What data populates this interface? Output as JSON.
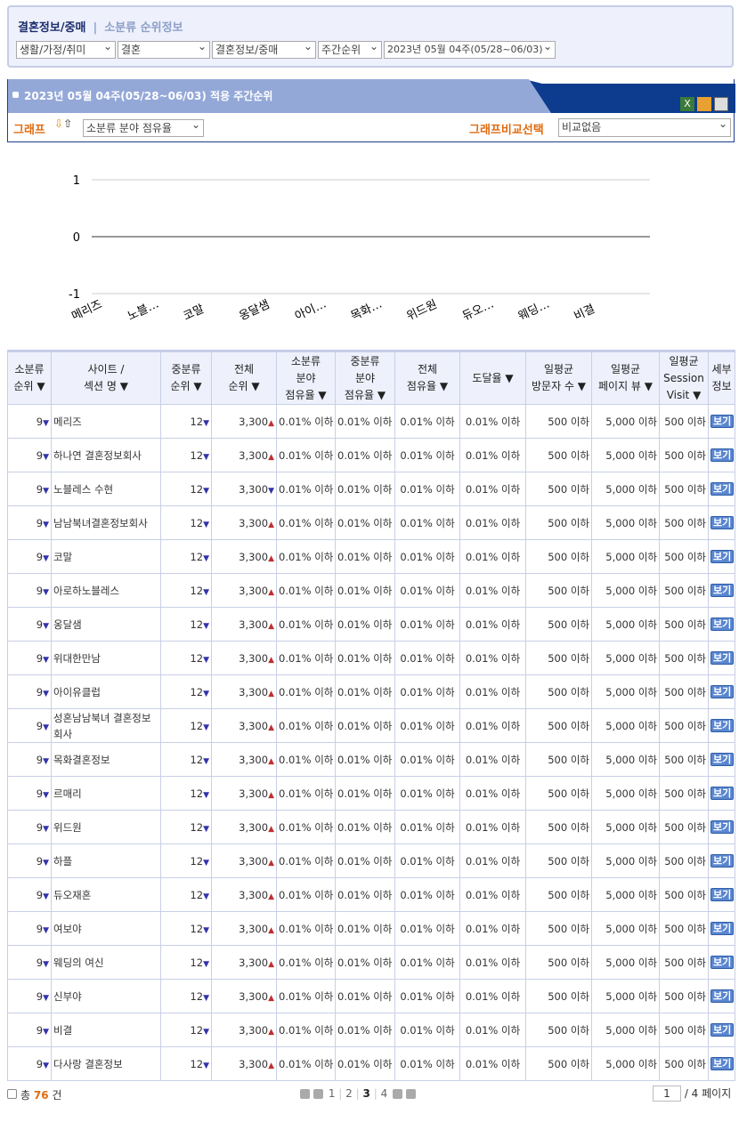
{
  "breadcrumb": {
    "category": "결혼정보/중매",
    "section": "소분류 순위정보",
    "separator": "|"
  },
  "filters": [
    "생활/가정/취미",
    "결혼",
    "결혼정보/중매",
    "주간순위",
    "2023년 05월 04주(05/28~06/03)"
  ],
  "panel": {
    "title": "2023년 05월 04주(05/28~06/03) 적용 주간순위",
    "graph_label": "그래프",
    "graph_select": "소분류 분야 점유율",
    "compare_label": "그래프비교선택",
    "compare_select": "비교없음",
    "icons": [
      "excel-icon",
      "export-icon",
      "print-icon"
    ]
  },
  "chart_data": {
    "type": "line",
    "categories": [
      "메리즈",
      "노블…",
      "코말",
      "옹달샘",
      "아이…",
      "목화…",
      "위드원",
      "듀오…",
      "웨딩…",
      "비결"
    ],
    "values": [
      0,
      0,
      0,
      0,
      0,
      0,
      0,
      0,
      0,
      0
    ],
    "ylim": [
      -1,
      1
    ],
    "yticks": [
      "1",
      "0",
      "-1"
    ],
    "grid": true
  },
  "table": {
    "headers": [
      "소분류\n순위 ▼",
      "사이트 /\n섹션 명 ▼",
      "중분류\n순위 ▼",
      "전체\n순위 ▼",
      "소분류\n분야\n점유율 ▼",
      "중분류\n분야\n점유율 ▼",
      "전체\n점유율 ▼",
      "도달율 ▼",
      "일평균\n방문자 수 ▼",
      "일평균\n페이지 뷰 ▼",
      "일평균\nSession\nVisit ▼",
      "세부\n정보"
    ],
    "view_label": "보기",
    "rows": [
      {
        "rank": "9",
        "name": "메리즈",
        "mid": "12",
        "total": "3,300",
        "dir": "up"
      },
      {
        "rank": "9",
        "name": "하나연 결혼정보회사",
        "mid": "12",
        "total": "3,300",
        "dir": "up"
      },
      {
        "rank": "9",
        "name": "노블레스 수현",
        "mid": "12",
        "total": "3,300",
        "dir": "down"
      },
      {
        "rank": "9",
        "name": "남남북녀결혼정보회사",
        "mid": "12",
        "total": "3,300",
        "dir": "up"
      },
      {
        "rank": "9",
        "name": "코말",
        "mid": "12",
        "total": "3,300",
        "dir": "up"
      },
      {
        "rank": "9",
        "name": "아로하노블레스",
        "mid": "12",
        "total": "3,300",
        "dir": "up"
      },
      {
        "rank": "9",
        "name": "옹달샘",
        "mid": "12",
        "total": "3,300",
        "dir": "up"
      },
      {
        "rank": "9",
        "name": "위대한만남",
        "mid": "12",
        "total": "3,300",
        "dir": "up"
      },
      {
        "rank": "9",
        "name": "아이유클럽",
        "mid": "12",
        "total": "3,300",
        "dir": "up"
      },
      {
        "rank": "9",
        "name": "성혼남남북녀 결혼정보회사",
        "mid": "12",
        "total": "3,300",
        "dir": "up"
      },
      {
        "rank": "9",
        "name": "목화결혼정보",
        "mid": "12",
        "total": "3,300",
        "dir": "up"
      },
      {
        "rank": "9",
        "name": "르매리",
        "mid": "12",
        "total": "3,300",
        "dir": "up"
      },
      {
        "rank": "9",
        "name": "위드원",
        "mid": "12",
        "total": "3,300",
        "dir": "up"
      },
      {
        "rank": "9",
        "name": "하플",
        "mid": "12",
        "total": "3,300",
        "dir": "up"
      },
      {
        "rank": "9",
        "name": "듀오재혼",
        "mid": "12",
        "total": "3,300",
        "dir": "up"
      },
      {
        "rank": "9",
        "name": "여보야",
        "mid": "12",
        "total": "3,300",
        "dir": "up"
      },
      {
        "rank": "9",
        "name": "웨딩의 여신",
        "mid": "12",
        "total": "3,300",
        "dir": "up"
      },
      {
        "rank": "9",
        "name": "신부야",
        "mid": "12",
        "total": "3,300",
        "dir": "up"
      },
      {
        "rank": "9",
        "name": "비결",
        "mid": "12",
        "total": "3,300",
        "dir": "up"
      },
      {
        "rank": "9",
        "name": "다사랑 결혼정보",
        "mid": "12",
        "total": "3,300",
        "dir": "up"
      }
    ],
    "share": "0.01% 이하",
    "visitors": "500 이하",
    "pageviews": "5,000 이하",
    "session": "500 이하"
  },
  "footer": {
    "total_prefix": "총",
    "total": "76",
    "total_suffix": "건",
    "pages": [
      "1",
      "2",
      "3",
      "4"
    ],
    "current_page": "3",
    "page_input": "1",
    "page_suffix": "/ 4 페이지"
  },
  "colors": {
    "accent": "#e06b10",
    "header_blue": "#0d3c8e",
    "header_light": "#94a8d8",
    "up": "#c03030",
    "down": "#3333aa"
  }
}
